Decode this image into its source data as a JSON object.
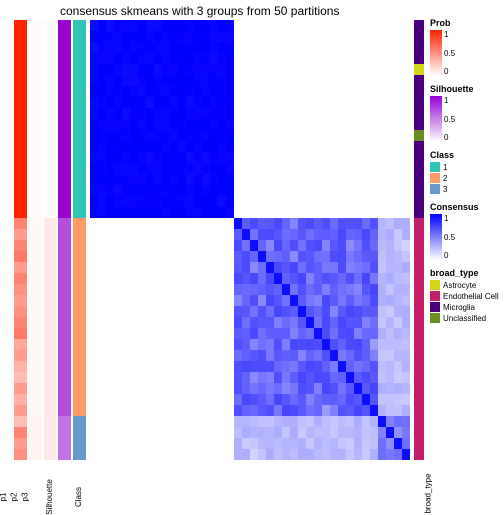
{
  "title": "consensus skmeans with 3 groups from 50 partitions",
  "colors": {
    "prob": {
      "low": "#ffffff",
      "high": "#ff2200"
    },
    "silhouette": {
      "low": "#ffffff",
      "high": "#9400d3"
    },
    "class": {
      "1": "#2ec4b6",
      "2": "#ff9966",
      "3": "#6699cc"
    },
    "consensus": {
      "low": "#ffffff",
      "high": "#0000ff"
    },
    "broad_type": {
      "Astrocyte": "#d4d419",
      "Endothelial Cell": "#c41e6a",
      "Microglia": "#4b0082",
      "Unclassified": "#6b8e23"
    }
  },
  "groups": {
    "g1_size": 18,
    "g2_size": 18,
    "g3_size": 4,
    "total": 40
  },
  "annotations": {
    "col_labels": [
      "p1",
      "p2",
      "p3",
      "Silhouette",
      "Class"
    ],
    "right_label": "broad_type",
    "cols": [
      {
        "name": "p1",
        "values": [
          1,
          1,
          1,
          1,
          1,
          1,
          1,
          1,
          1,
          1,
          1,
          1,
          1,
          1,
          1,
          1,
          1,
          1,
          0.55,
          0.45,
          0.55,
          0.6,
          0.45,
          0.55,
          0.5,
          0.45,
          0.5,
          0.55,
          0.6,
          0.4,
          0.45,
          0.35,
          0.3,
          0.45,
          0.35,
          0.45,
          0.3,
          0.55,
          0.45,
          0.5
        ],
        "scale": "prob"
      },
      {
        "name": "p2",
        "values": [
          0.02,
          0.02,
          0.02,
          0.02,
          0.02,
          0.02,
          0.02,
          0.02,
          0.02,
          0.02,
          0.02,
          0.02,
          0.02,
          0.02,
          0.02,
          0.02,
          0.02,
          0.02,
          0.03,
          0.03,
          0.03,
          0.03,
          0.03,
          0.03,
          0.03,
          0.03,
          0.03,
          0.03,
          0.03,
          0.03,
          0.03,
          0.03,
          0.03,
          0.03,
          0.03,
          0.03,
          0.05,
          0.05,
          0.05,
          0.05
        ],
        "scale": "prob"
      },
      {
        "name": "p3",
        "values": [
          0.02,
          0.02,
          0.02,
          0.02,
          0.02,
          0.02,
          0.02,
          0.02,
          0.02,
          0.02,
          0.02,
          0.02,
          0.02,
          0.02,
          0.02,
          0.02,
          0.02,
          0.02,
          0.1,
          0.1,
          0.1,
          0.1,
          0.1,
          0.1,
          0.1,
          0.1,
          0.1,
          0.1,
          0.1,
          0.1,
          0.1,
          0.1,
          0.1,
          0.1,
          0.1,
          0.1,
          0.1,
          0.1,
          0.1,
          0.1
        ],
        "scale": "prob"
      },
      {
        "name": "Silhouette",
        "values": [
          0.98,
          0.98,
          0.98,
          0.98,
          0.98,
          0.98,
          0.98,
          0.98,
          0.98,
          0.98,
          0.98,
          0.98,
          0.98,
          0.98,
          0.98,
          0.98,
          0.98,
          0.98,
          0.7,
          0.7,
          0.7,
          0.7,
          0.7,
          0.7,
          0.7,
          0.7,
          0.7,
          0.7,
          0.7,
          0.7,
          0.7,
          0.7,
          0.7,
          0.7,
          0.7,
          0.7,
          0.55,
          0.55,
          0.55,
          0.55
        ],
        "scale": "silhouette"
      },
      {
        "name": "Class",
        "values": [
          "1",
          "1",
          "1",
          "1",
          "1",
          "1",
          "1",
          "1",
          "1",
          "1",
          "1",
          "1",
          "1",
          "1",
          "1",
          "1",
          "1",
          "1",
          "2",
          "2",
          "2",
          "2",
          "2",
          "2",
          "2",
          "2",
          "2",
          "2",
          "2",
          "2",
          "2",
          "2",
          "2",
          "2",
          "2",
          "2",
          "3",
          "3",
          "3",
          "3"
        ],
        "scale": "class"
      }
    ],
    "right": {
      "name": "broad_type",
      "values": [
        "Microglia",
        "Microglia",
        "Microglia",
        "Microglia",
        "Astrocyte",
        "Microglia",
        "Microglia",
        "Microglia",
        "Microglia",
        "Microglia",
        "Unclassified",
        "Microglia",
        "Microglia",
        "Microglia",
        "Microglia",
        "Microglia",
        "Microglia",
        "Microglia",
        "Endothelial Cell",
        "Endothelial Cell",
        "Endothelial Cell",
        "Endothelial Cell",
        "Endothelial Cell",
        "Endothelial Cell",
        "Endothelial Cell",
        "Endothelial Cell",
        "Endothelial Cell",
        "Endothelial Cell",
        "Endothelial Cell",
        "Endothelial Cell",
        "Endothelial Cell",
        "Endothelial Cell",
        "Endothelial Cell",
        "Endothelial Cell",
        "Endothelial Cell",
        "Endothelial Cell",
        "Endothelial Cell",
        "Endothelial Cell",
        "Endothelial Cell",
        "Endothelial Cell"
      ],
      "scale": "broad_type"
    }
  },
  "heatmap": {
    "n": 40,
    "blocks": [
      {
        "r0": 0,
        "r1": 18,
        "c0": 0,
        "c1": 18,
        "base": 0.98,
        "noise": 0.05
      },
      {
        "r0": 18,
        "r1": 36,
        "c0": 18,
        "c1": 36,
        "base": 0.55,
        "noise": 0.35
      },
      {
        "r0": 36,
        "r1": 40,
        "c0": 36,
        "c1": 40,
        "base": 0.45,
        "noise": 0.25
      },
      {
        "r0": 18,
        "r1": 36,
        "c0": 36,
        "c1": 40,
        "base": 0.25,
        "noise": 0.15
      },
      {
        "r0": 36,
        "r1": 40,
        "c0": 18,
        "c1": 36,
        "base": 0.25,
        "noise": 0.15
      }
    ]
  },
  "legends": [
    {
      "type": "gradient",
      "title": "Prob",
      "scale": "prob",
      "ticks": [
        "1",
        "0.5",
        "0"
      ]
    },
    {
      "type": "gradient",
      "title": "Silhouette",
      "scale": "silhouette",
      "ticks": [
        "1",
        "0.5",
        "0"
      ]
    },
    {
      "type": "discrete",
      "title": "Class",
      "scale": "class",
      "items": [
        "1",
        "2",
        "3"
      ]
    },
    {
      "type": "gradient",
      "title": "Consensus",
      "scale": "consensus",
      "ticks": [
        "1",
        "0.5",
        "0"
      ]
    },
    {
      "type": "discrete",
      "title": "broad_type",
      "scale": "broad_type",
      "items": [
        "Astrocyte",
        "Endothelial Cell",
        "Microglia",
        "Unclassified"
      ]
    }
  ]
}
